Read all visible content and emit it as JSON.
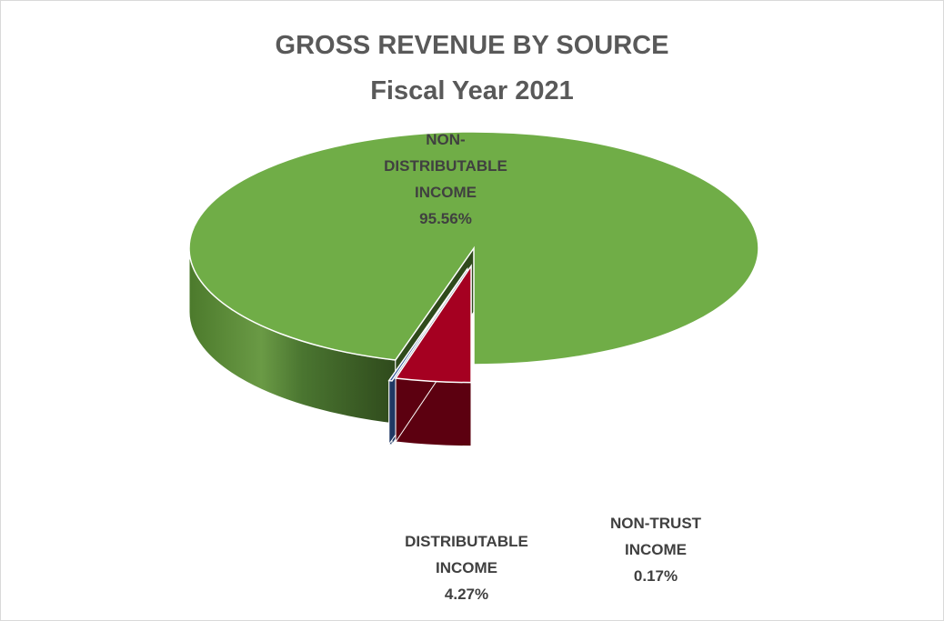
{
  "chart_data": {
    "type": "pie",
    "style": "3d-exploded",
    "title": "GROSS REVENUE BY SOURCE",
    "subtitle": "Fiscal Year 2021",
    "legend": "none",
    "slices": [
      {
        "label": "NON-DISTRIBUTABLE INCOME",
        "label_lines": [
          "NON-",
          "DISTRIBUTABLE",
          "INCOME"
        ],
        "value": 95.56,
        "value_label": "95.56%",
        "color": "#70ad47",
        "side_color": "#2f4a1c"
      },
      {
        "label": "DISTRIBUTABLE INCOME",
        "label_lines": [
          "DISTRIBUTABLE",
          "INCOME"
        ],
        "value": 4.27,
        "value_label": "4.27%",
        "color": "#a50021",
        "side_color": "#5c0010"
      },
      {
        "label": "NON-TRUST INCOME",
        "label_lines": [
          "NON-TRUST",
          "INCOME"
        ],
        "value": 0.17,
        "value_label": "0.17%",
        "color": "#2f5597",
        "side_color": "#1f3864"
      }
    ]
  }
}
